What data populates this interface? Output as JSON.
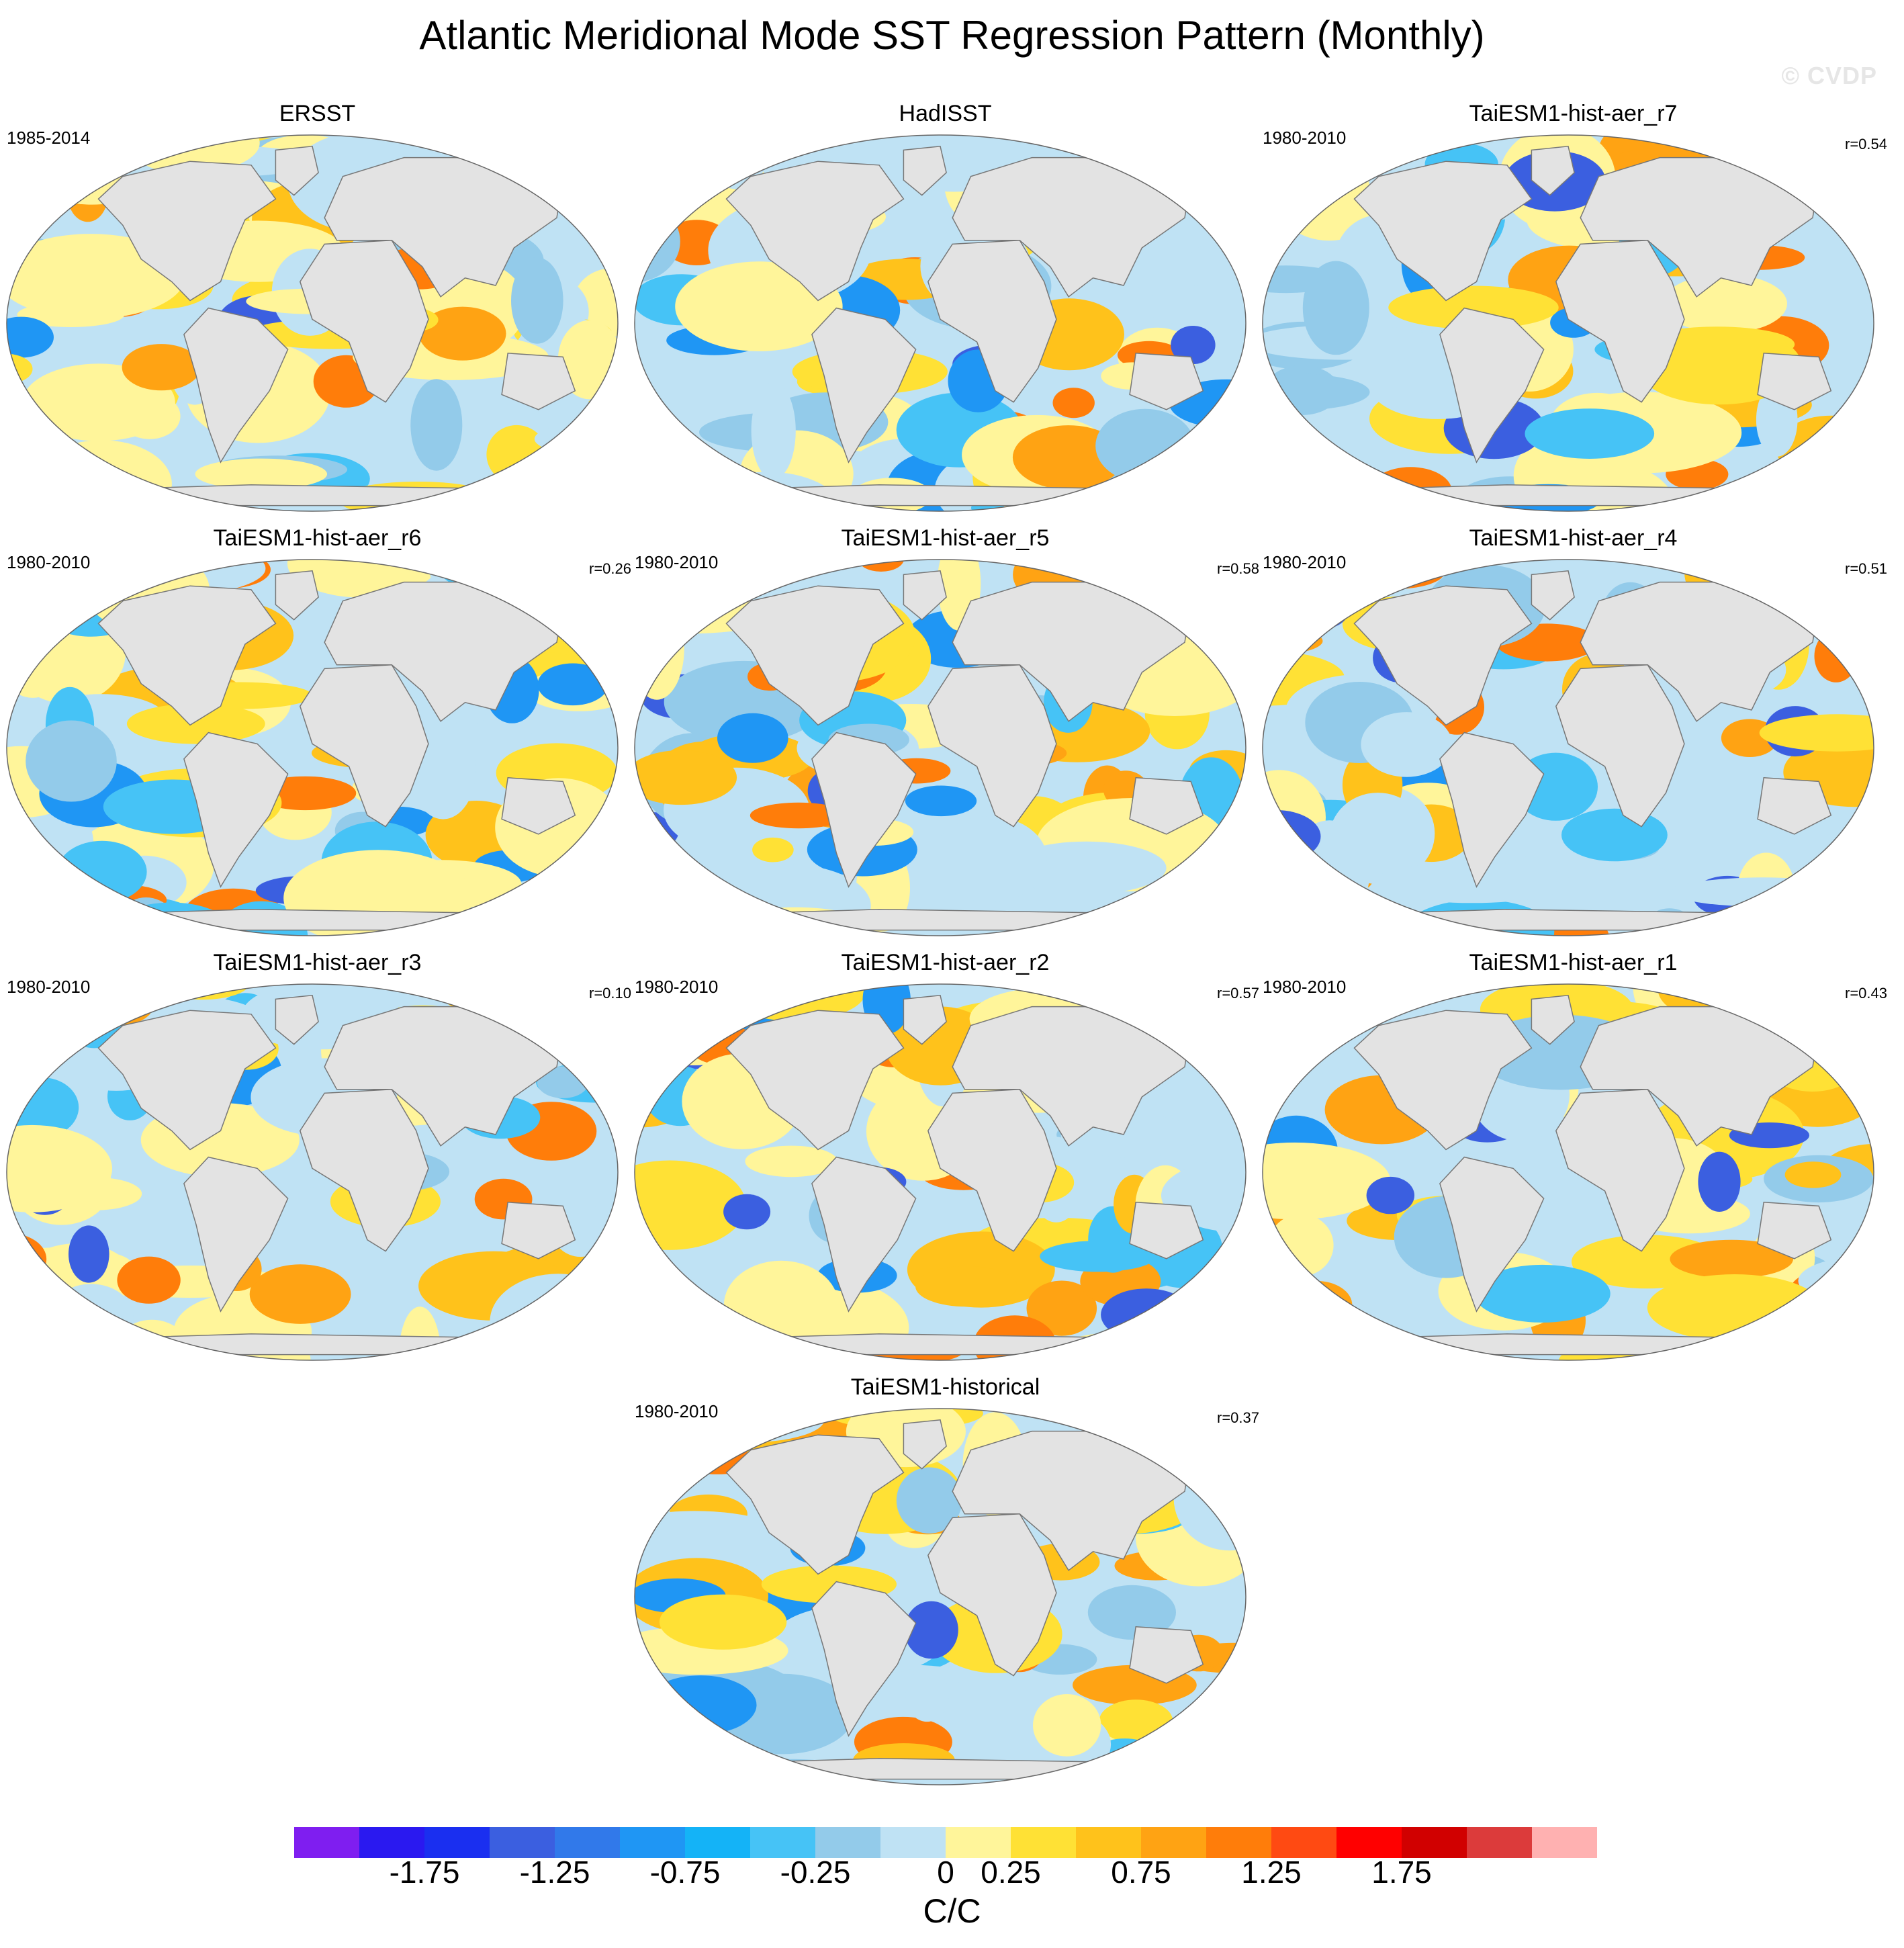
{
  "title": "Atlantic Meridional Mode SST Regression Pattern (Monthly)",
  "watermark": "© CVDP",
  "units": "C/C",
  "colorbar": {
    "colors": [
      "#7f1ef0",
      "#2a19f0",
      "#1a2ff0",
      "#3b5fe0",
      "#3179ea",
      "#1f96f4",
      "#14b3f7",
      "#46c3f6",
      "#93cbea",
      "#bfe2f4",
      "#fff59a",
      "#ffe135",
      "#ffc21b",
      "#ffa313",
      "#ff7d0a",
      "#ff4a12",
      "#ff0000",
      "#d10000",
      "#dc3b3b",
      "#ffb1b1"
    ],
    "labels": [
      "-1.75",
      "-1.25",
      "-0.75",
      "-0.25",
      "0",
      "0.25",
      "0.75",
      "1.25",
      "1.75"
    ]
  },
  "palette": {
    "land": "#e3e3e3",
    "ocean_pos_light": "#fff59a",
    "ocean_pos": "#ffe135",
    "ocean_pos_mid": "#ffc21b",
    "ocean_pos_strong": "#ffa313",
    "ocean_pos_vstrong": "#ff7d0a",
    "ocean_neg_light": "#bfe2f4",
    "ocean_neg": "#93cbea",
    "ocean_neg_mid": "#46c3f6",
    "ocean_neg_strong": "#1f96f4",
    "ocean_neg_vstrong": "#3b5fe0"
  },
  "panels": [
    {
      "title": "ERSST",
      "period": "1985-2014",
      "r": ""
    },
    {
      "title": "HadISST",
      "period": "",
      "r": ""
    },
    {
      "title": "TaiESM1-hist-aer_r7",
      "period": "1980-2010",
      "r": "r=0.54"
    },
    {
      "title": "TaiESM1-hist-aer_r6",
      "period": "1980-2010",
      "r": "r=0.26"
    },
    {
      "title": "TaiESM1-hist-aer_r5",
      "period": "1980-2010",
      "r": "r=0.58"
    },
    {
      "title": "TaiESM1-hist-aer_r4",
      "period": "1980-2010",
      "r": "r=0.51"
    },
    {
      "title": "TaiESM1-hist-aer_r3",
      "period": "1980-2010",
      "r": "r=0.10"
    },
    {
      "title": "TaiESM1-hist-aer_r2",
      "period": "1980-2010",
      "r": "r=0.57"
    },
    {
      "title": "TaiESM1-hist-aer_r1",
      "period": "1980-2010",
      "r": "r=0.43"
    },
    {
      "title": "TaiESM1-historical",
      "period": "1980-2010",
      "r": "r=0.37"
    }
  ]
}
